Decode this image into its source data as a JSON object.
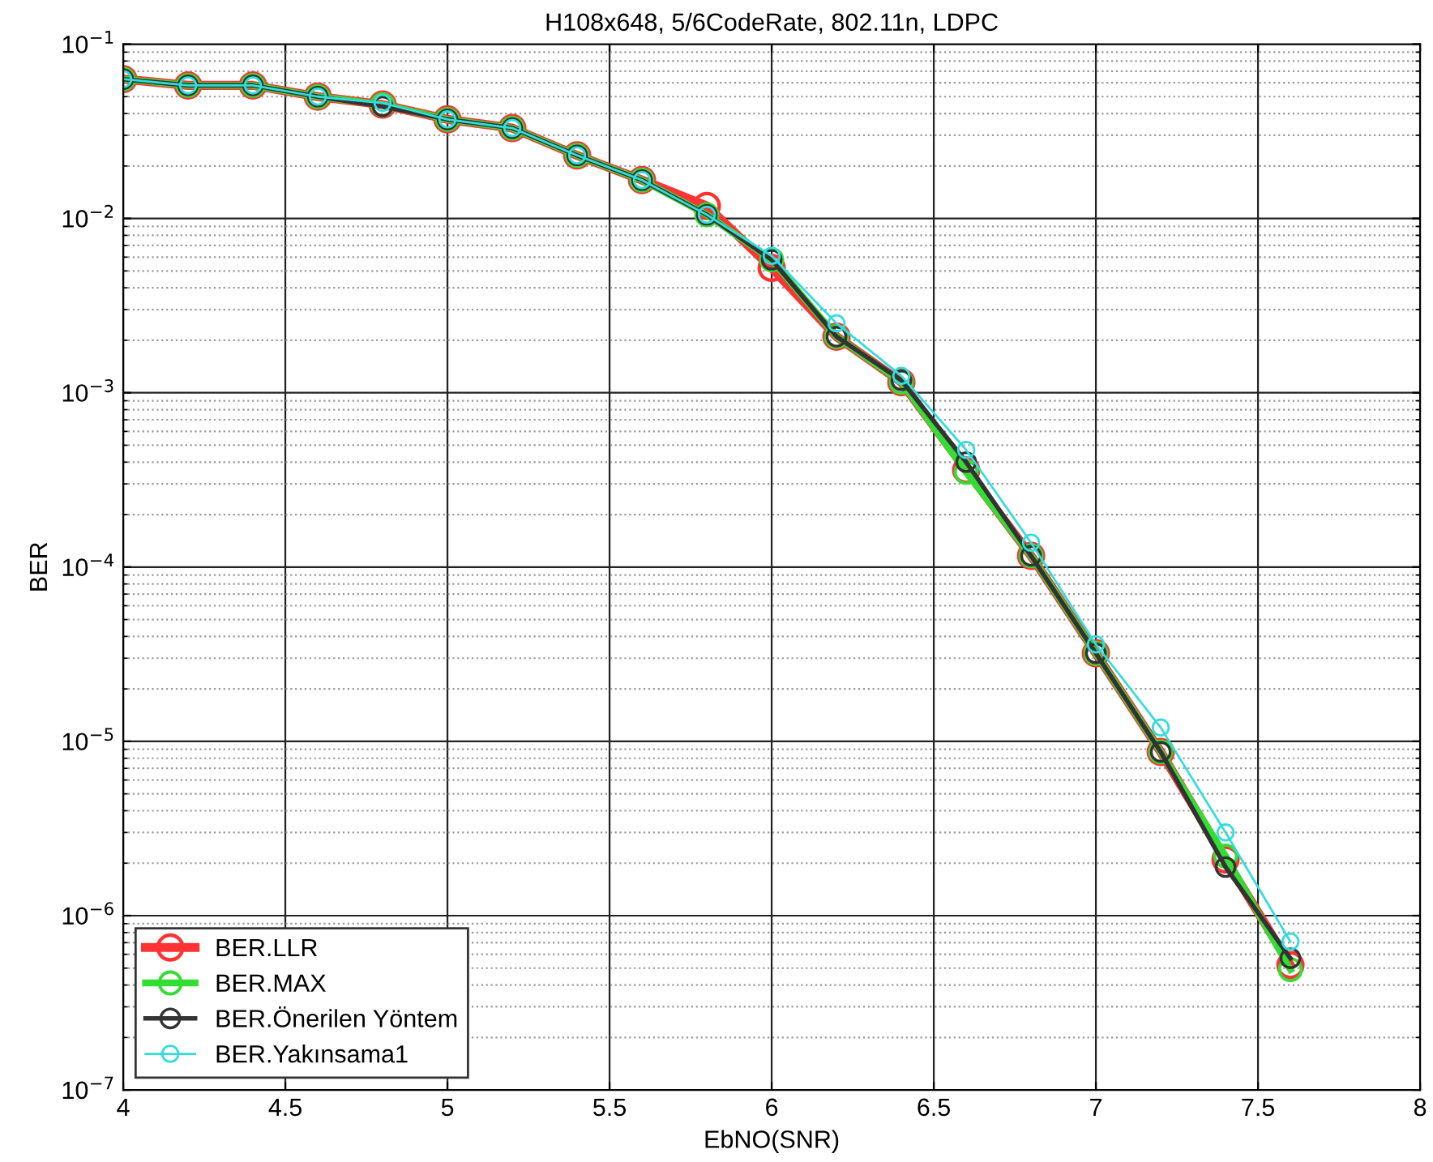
{
  "chart_data": {
    "type": "line",
    "title": "H108x648, 5/6CodeRate, 802.11n, LDPC",
    "xlabel": "EbNO(SNR)",
    "ylabel": "BER",
    "x": [
      4.0,
      4.2,
      4.4,
      4.6,
      4.8,
      5.0,
      5.2,
      5.4,
      5.6,
      5.8,
      6.0,
      6.2,
      6.4,
      6.6,
      6.8,
      7.0,
      7.2,
      7.4,
      7.6
    ],
    "series": [
      {
        "name": "BER.LLR",
        "color": "#ff3333",
        "values": [
          0.063,
          0.058,
          0.058,
          0.05,
          0.045,
          0.037,
          0.033,
          0.023,
          0.0166,
          0.0118,
          0.0052,
          0.0021,
          0.00115,
          0.00036,
          0.000116,
          3.2e-05,
          8.7e-06,
          2.1e-06,
          5.2e-07
        ]
      },
      {
        "name": "BER.MAX",
        "color": "#33dd33",
        "values": [
          0.063,
          0.058,
          0.058,
          0.05,
          0.045,
          0.037,
          0.033,
          0.023,
          0.0166,
          0.0105,
          0.0058,
          0.0021,
          0.00115,
          0.00035,
          0.000116,
          3.2e-05,
          8.7e-06,
          2.2e-06,
          4.9e-07
        ]
      },
      {
        "name": "BER.Önerilen Yöntem",
        "color": "#333333",
        "values": [
          0.063,
          0.058,
          0.058,
          0.05,
          0.044,
          0.037,
          0.033,
          0.023,
          0.0166,
          0.0105,
          0.0058,
          0.0021,
          0.00118,
          0.0004,
          0.000116,
          3.2e-05,
          8.7e-06,
          1.9e-06,
          5.7e-07
        ]
      },
      {
        "name": "BER.Yakınsama1",
        "color": "#33dddd",
        "values": [
          0.063,
          0.058,
          0.058,
          0.05,
          0.046,
          0.037,
          0.033,
          0.023,
          0.0166,
          0.0105,
          0.0061,
          0.0025,
          0.00125,
          0.00047,
          0.000138,
          3.6e-05,
          1.2e-05,
          3e-06,
          7.1e-07
        ]
      }
    ],
    "xlim": [
      4,
      8
    ],
    "xticks": [
      4,
      4.5,
      5,
      5.5,
      6,
      6.5,
      7,
      7.5,
      8
    ],
    "log": "y",
    "ylim": [
      1e-07,
      0.1
    ],
    "yticks": [
      {
        "value": 1e-07,
        "label": "10$^{−7}$"
      },
      {
        "value": 1e-06,
        "label": "10$^{−6}$"
      },
      {
        "value": 1e-05,
        "label": "10$^{−5}$"
      },
      {
        "value": 0.0001,
        "label": "10$^{−4}$"
      },
      {
        "value": 0.001,
        "label": "10$^{−3}$"
      },
      {
        "value": 0.01,
        "label": "10$^{−2}$"
      },
      {
        "value": 0.1,
        "label": "10$^{−1}$"
      }
    ],
    "grid": true,
    "legend": "bottom left",
    "marker": "circle",
    "line_style": "solid"
  }
}
